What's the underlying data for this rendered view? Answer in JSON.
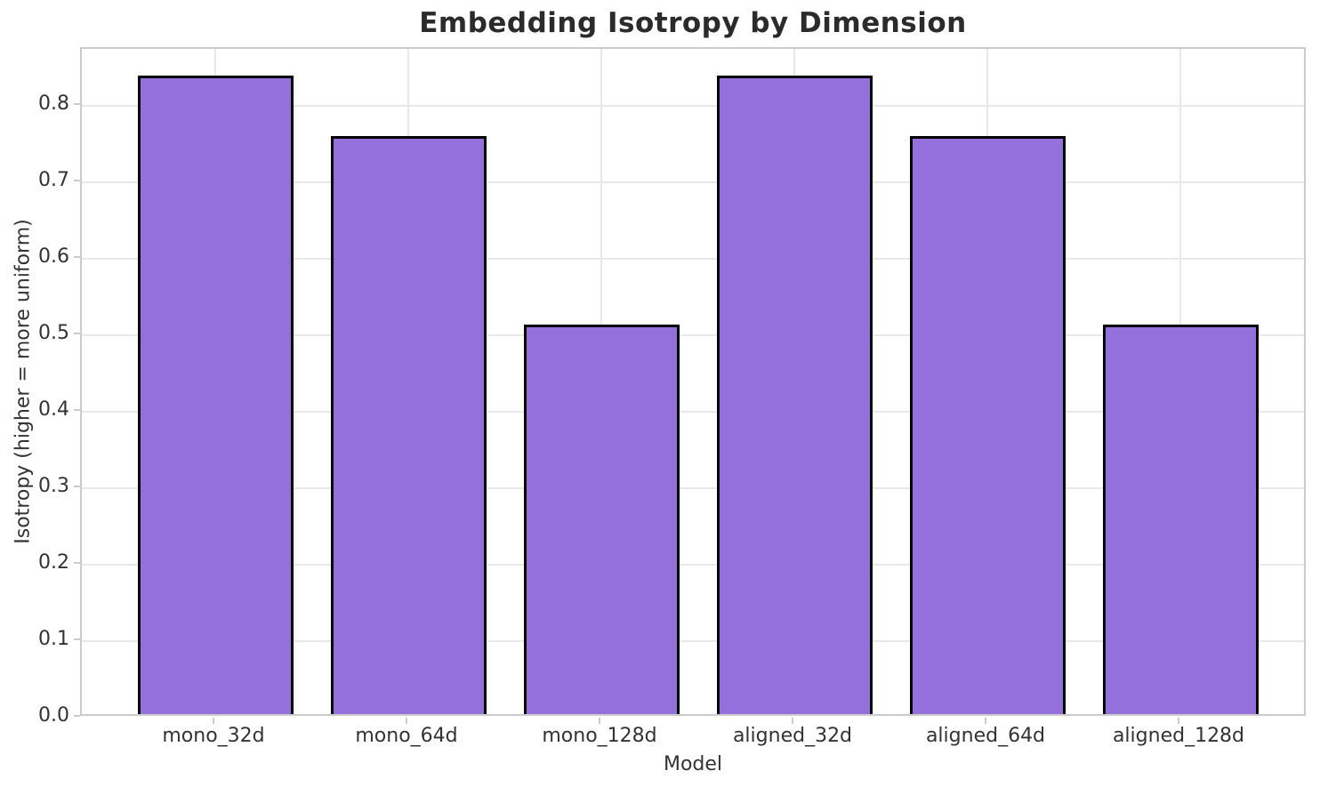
{
  "chart_data": {
    "type": "bar",
    "title": "Embedding Isotropy by Dimension",
    "xlabel": "Model",
    "ylabel": "Isotropy (higher = more uniform)",
    "categories": [
      "mono_32d",
      "mono_64d",
      "mono_128d",
      "aligned_32d",
      "aligned_64d",
      "aligned_128d"
    ],
    "values": [
      0.834,
      0.755,
      0.509,
      0.834,
      0.755,
      0.509
    ],
    "ytick_values": [
      0.0,
      0.1,
      0.2,
      0.3,
      0.4,
      0.5,
      0.6,
      0.7,
      0.8
    ],
    "ytick_labels": [
      "0.0",
      "0.1",
      "0.2",
      "0.3",
      "0.4",
      "0.5",
      "0.6",
      "0.7",
      "0.8"
    ],
    "ylim": [
      0,
      0.874
    ],
    "grid": true,
    "legend": "none",
    "colors": {
      "bar_fill": "#9370DB",
      "bar_edge": "#000000",
      "grid_line": "#e8e8e8",
      "spine": "#cccccc",
      "tick_text": "#333333",
      "title_text": "#2b2b2b",
      "background": "#ffffff"
    }
  }
}
